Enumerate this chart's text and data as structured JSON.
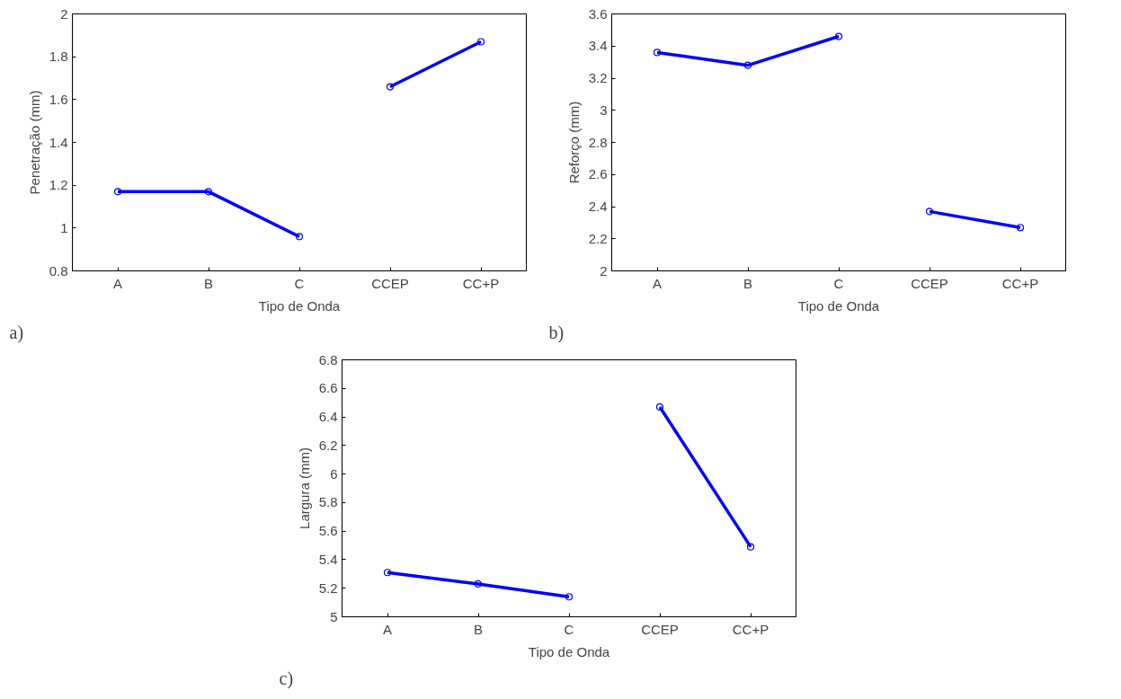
{
  "chart_data": [
    {
      "type": "line",
      "categories": [
        "A",
        "B",
        "C",
        "CCEP",
        "CC+P"
      ],
      "xlabel": "Tipo de Onda",
      "ylabel": "Penetração (mm)",
      "annotations": [
        "a)"
      ],
      "ylim": [
        0.8,
        2
      ],
      "yticks": [
        0.8,
        1,
        1.2,
        1.4,
        1.6,
        1.8,
        2
      ],
      "marker": "circle",
      "line_style": "solid",
      "series": [
        {
          "color": "#0000ff",
          "values": [
            1.17,
            1.17,
            0.96,
            null,
            null
          ]
        },
        {
          "color": "#0000ff",
          "values": [
            null,
            null,
            null,
            1.66,
            1.87
          ]
        }
      ]
    },
    {
      "type": "line",
      "categories": [
        "A",
        "B",
        "C",
        "CCEP",
        "CC+P"
      ],
      "xlabel": "Tipo de Onda",
      "ylabel": "Reforço (mm)",
      "annotations": [
        "b)"
      ],
      "ylim": [
        2,
        3.6
      ],
      "yticks": [
        2,
        2.2,
        2.4,
        2.6,
        2.8,
        3,
        3.2,
        3.4,
        3.6
      ],
      "marker": "circle",
      "line_style": "solid",
      "series": [
        {
          "color": "#0000ff",
          "values": [
            3.36,
            3.28,
            3.46,
            null,
            null
          ]
        },
        {
          "color": "#0000ff",
          "values": [
            null,
            null,
            null,
            2.37,
            2.27
          ]
        }
      ]
    },
    {
      "type": "line",
      "categories": [
        "A",
        "B",
        "C",
        "CCEP",
        "CC+P"
      ],
      "xlabel": "Tipo de Onda",
      "ylabel": "Largura (mm)",
      "annotations": [
        "c)"
      ],
      "ylim": [
        5,
        6.8
      ],
      "yticks": [
        5,
        5.2,
        5.4,
        5.6,
        5.8,
        6,
        6.2,
        6.4,
        6.6,
        6.8
      ],
      "marker": "circle",
      "line_style": "solid",
      "series": [
        {
          "color": "#0000ff",
          "values": [
            5.31,
            5.23,
            5.14,
            null,
            null
          ]
        },
        {
          "color": "#0000ff",
          "values": [
            null,
            null,
            null,
            6.47,
            5.49
          ]
        }
      ]
    }
  ]
}
